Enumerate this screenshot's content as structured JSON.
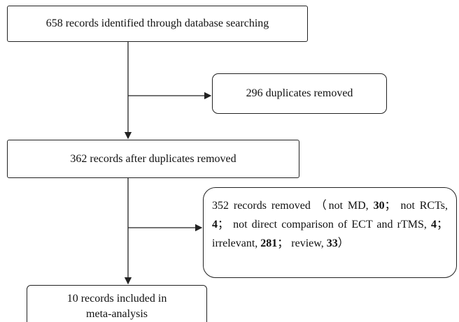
{
  "nodes": [
    {
      "text": "658 records identified through database searching"
    },
    {
      "text": "296 duplicates removed"
    },
    {
      "text": "362 records after duplicates removed"
    },
    {
      "segments": [
        {
          "text": "352 records removed （not MD, ",
          "bold": false
        },
        {
          "text": "30",
          "bold": true
        },
        {
          "text": "； not RCTs, ",
          "bold": false
        },
        {
          "text": "4",
          "bold": true
        },
        {
          "text": "； not direct comparison of ECT and rTMS, ",
          "bold": false
        },
        {
          "text": "4",
          "bold": true
        },
        {
          "text": "； irrelevant, ",
          "bold": false
        },
        {
          "text": "281",
          "bold": true
        },
        {
          "text": "； review, ",
          "bold": false
        },
        {
          "text": "33",
          "bold": true
        },
        {
          "text": "）",
          "bold": false
        }
      ]
    },
    {
      "lines": [
        "10 records included in",
        "meta-analysis"
      ]
    }
  ]
}
